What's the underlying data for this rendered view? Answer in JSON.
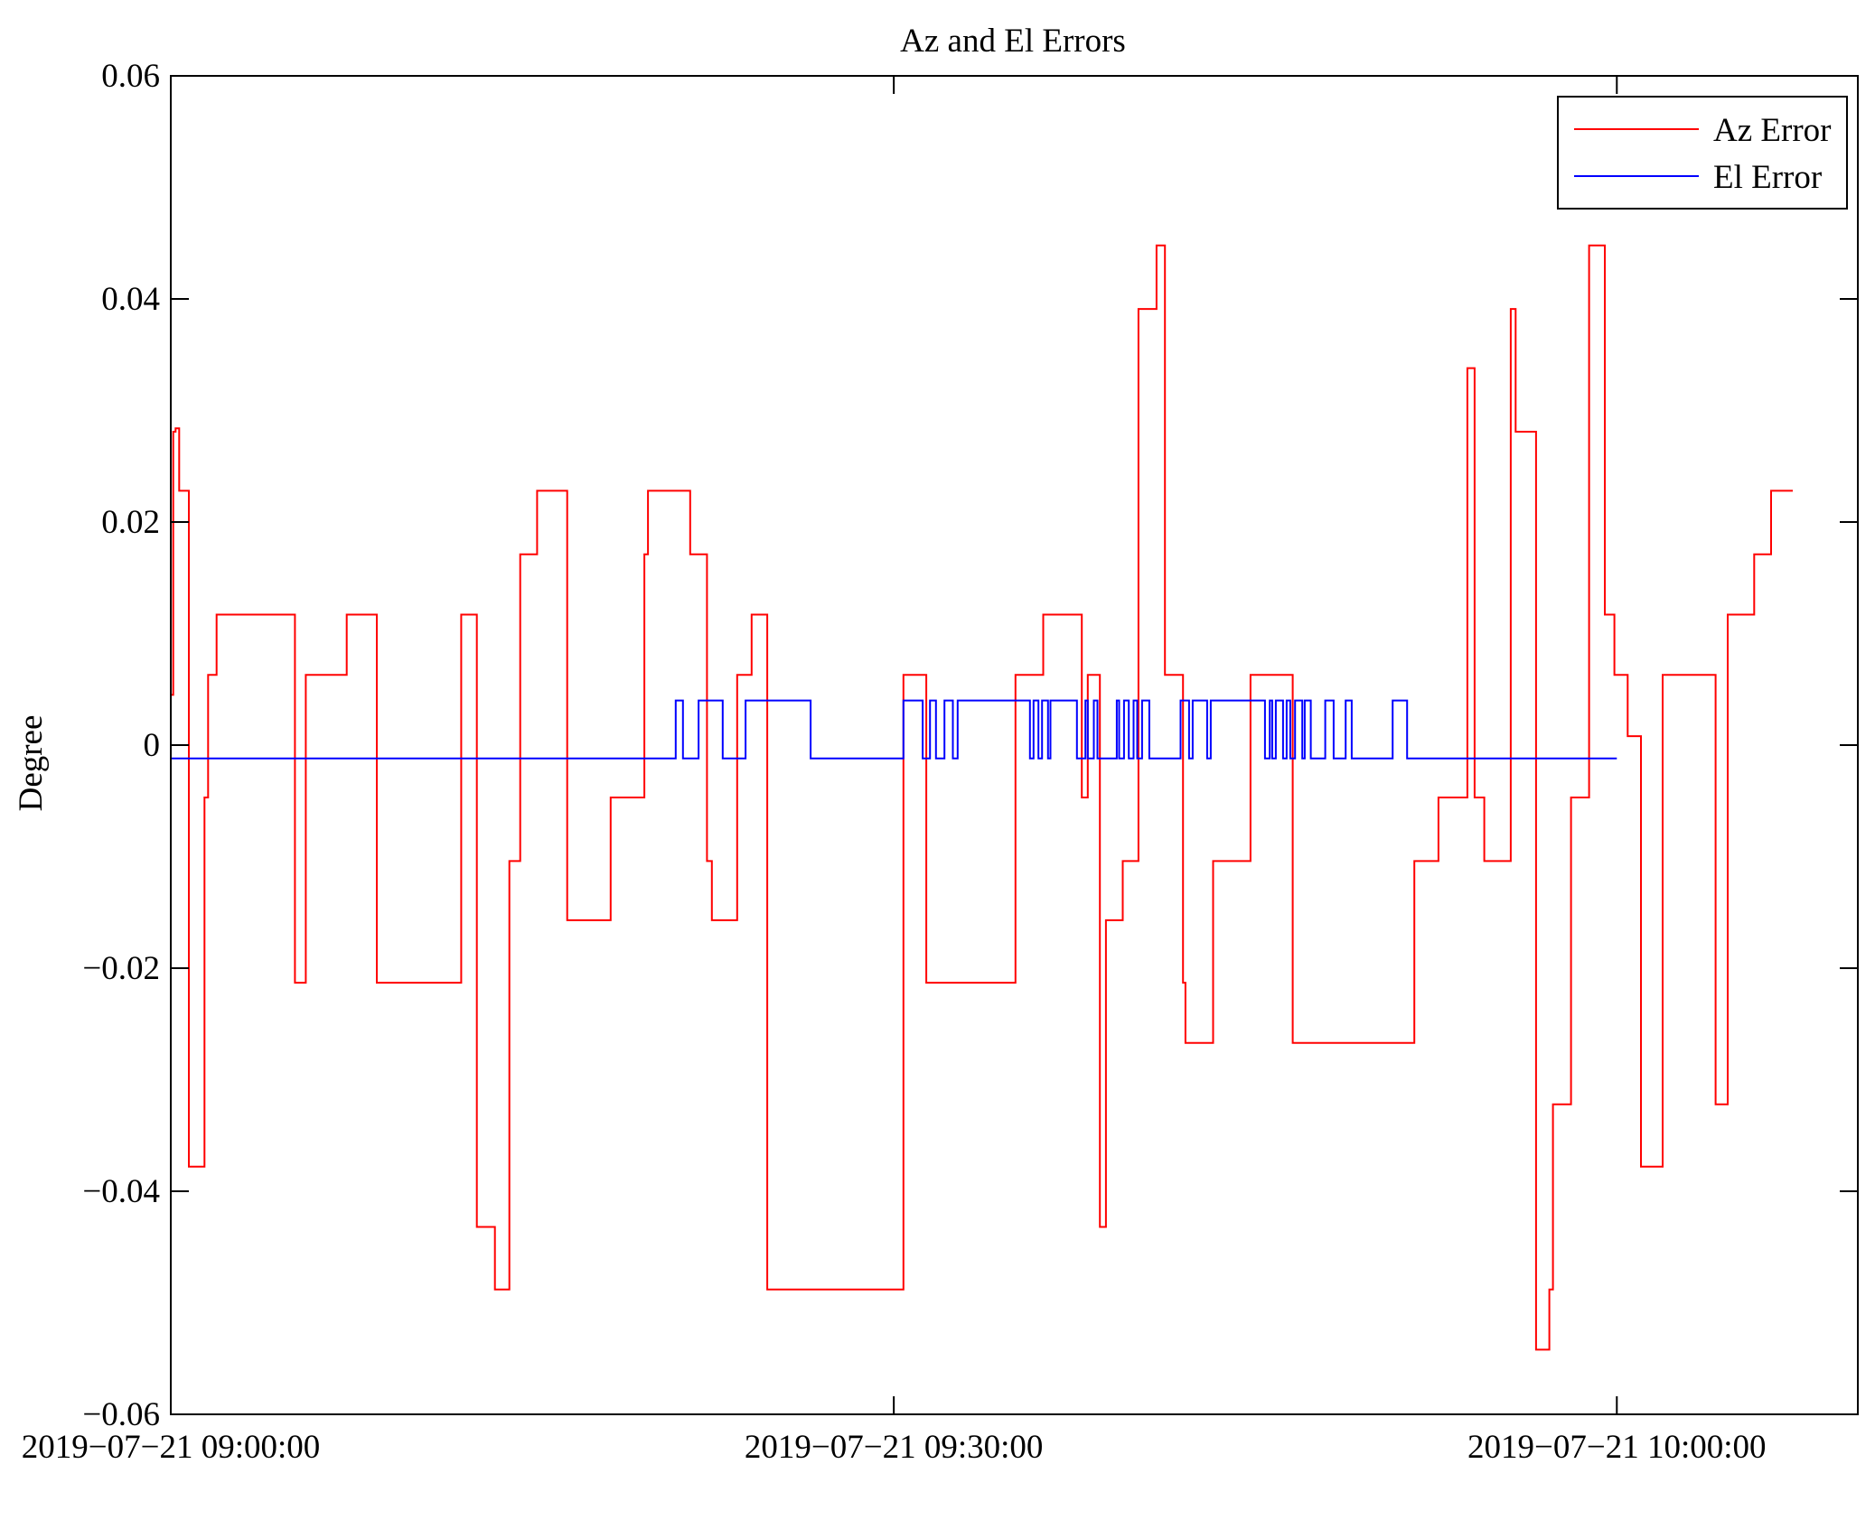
{
  "chart_data": {
    "type": "line",
    "title": "Az and El Errors",
    "xlabel": "",
    "ylabel": "Degree",
    "x_unit": "minutes after 2019-07-21 09:00:00",
    "xlim": [
      0,
      70
    ],
    "ylim": [
      -0.06,
      0.06
    ],
    "x_ticks": [
      {
        "value": 0,
        "label": "2019−07−21 09:00:00"
      },
      {
        "value": 30,
        "label": "2019−07−21 09:30:00"
      },
      {
        "value": 60,
        "label": "2019−07−21 10:00:00"
      }
    ],
    "y_ticks": [
      {
        "value": 0.06,
        "label": "0.06"
      },
      {
        "value": 0.04,
        "label": "0.04"
      },
      {
        "value": 0.02,
        "label": "0.02"
      },
      {
        "value": 0,
        "label": "0"
      },
      {
        "value": -0.02,
        "label": "−0.02"
      },
      {
        "value": -0.04,
        "label": "−0.04"
      },
      {
        "value": -0.06,
        "label": "−0.06"
      }
    ],
    "grid": false,
    "legend_position": "top-right",
    "series": [
      {
        "name": "Az Error",
        "color": "#ff0000",
        "style": "step",
        "x": [
          0,
          0.1,
          0.2,
          0.35,
          0.65,
          0.75,
          1.3,
          1.4,
          1.55,
          1.9,
          3.85,
          5.15,
          5.6,
          7.3,
          8.55,
          12.05,
          12.7,
          13.45,
          14.05,
          14.5,
          15.2,
          16.0,
          16.45,
          18.25,
          19.05,
          19.65,
          19.8,
          20.25,
          21.55,
          22.25,
          22.45,
          22.65,
          23.5,
          24.1,
          24.5,
          24.75,
          25.3,
          30.4,
          31.35,
          35.05,
          36.2,
          36.85,
          37.8,
          38.05,
          38.25,
          38.55,
          38.7,
          38.8,
          39.5,
          39.95,
          40.15,
          40.9,
          41.25,
          41.35,
          42.0,
          42.1,
          42.95,
          43.25,
          44.8,
          46.45,
          46.55,
          47.4,
          51.6,
          52.6,
          53.1,
          53.8,
          53.95,
          54.1,
          54.5,
          55.05,
          55.6,
          55.8,
          56.2,
          56.65,
          57.2,
          57.35,
          58.1,
          58.85,
          59.5,
          59.9,
          60.45,
          60.75,
          61.0,
          61.9,
          62.0,
          64.1,
          64.6,
          65.7,
          66.4,
          67.3
        ],
        "values": [
          0.0045,
          0.0281,
          0.0284,
          0.0228,
          0.0228,
          -0.0378,
          -0.0378,
          -0.0047,
          0.0063,
          0.0117,
          0.0117,
          -0.0213,
          0.0063,
          0.0117,
          -0.0213,
          0.0117,
          -0.0432,
          -0.0488,
          -0.0104,
          0.0171,
          0.0228,
          0.0228,
          -0.0157,
          -0.0047,
          -0.0047,
          0.0171,
          0.0228,
          0.0228,
          0.0171,
          -0.0104,
          -0.0157,
          -0.0157,
          0.0063,
          0.0117,
          0.0117,
          -0.0488,
          -0.0488,
          0.0063,
          -0.0213,
          0.0063,
          0.0117,
          0.0117,
          -0.0047,
          0.0063,
          0.0063,
          -0.0432,
          -0.0432,
          -0.0157,
          -0.0104,
          -0.0104,
          0.0391,
          0.0448,
          0.0063,
          0.0063,
          -0.0213,
          -0.0267,
          -0.0267,
          -0.0104,
          0.0063,
          0.0063,
          -0.0267,
          -0.0267,
          -0.0104,
          -0.0047,
          -0.0047,
          0.0338,
          0.0338,
          -0.0047,
          -0.0104,
          -0.0104,
          0.0391,
          0.0281,
          0.0281,
          -0.0542,
          -0.0488,
          -0.0322,
          -0.0047,
          0.0448,
          0.0117,
          0.0063,
          0.0008,
          0.0008,
          -0.0378,
          0.0063,
          0.0063,
          -0.0322,
          0.0117,
          0.0171,
          0.0228,
          0.0228
        ]
      },
      {
        "name": "El Error",
        "color": "#0000ff",
        "style": "step",
        "x": [
          0,
          20.95,
          21.25,
          21.9,
          22.9,
          23.85,
          24.0,
          26.55,
          30.4,
          31.2,
          31.5,
          31.75,
          32.1,
          32.45,
          32.65,
          33.15,
          35.65,
          35.8,
          36.0,
          36.15,
          36.4,
          36.5,
          37.0,
          37.6,
          37.95,
          38.05,
          38.3,
          38.45,
          39.25,
          39.35,
          39.55,
          39.75,
          39.95,
          40.1,
          40.3,
          40.6,
          41.9,
          42.25,
          42.4,
          43.0,
          43.15,
          45.4,
          45.6,
          45.7,
          45.85,
          46.15,
          46.3,
          46.45,
          46.65,
          46.95,
          47.05,
          47.3,
          47.9,
          48.25,
          48.75,
          49.0,
          50.7,
          51.3,
          60.0
        ],
        "values": [
          -0.0012,
          0.004,
          -0.0012,
          0.004,
          -0.0012,
          0.004,
          0.004,
          -0.0012,
          0.004,
          -0.0012,
          0.004,
          -0.0012,
          0.004,
          -0.0012,
          0.004,
          0.004,
          -0.0012,
          0.004,
          -0.0012,
          0.004,
          -0.0012,
          0.004,
          0.004,
          -0.0012,
          0.004,
          -0.0012,
          0.004,
          -0.0012,
          0.004,
          -0.0012,
          0.004,
          -0.0012,
          0.004,
          -0.0012,
          0.004,
          -0.0012,
          0.004,
          -0.0012,
          0.004,
          -0.0012,
          0.004,
          -0.0012,
          0.004,
          -0.0012,
          0.004,
          -0.0012,
          0.004,
          -0.0012,
          0.004,
          -0.0012,
          0.004,
          -0.0012,
          0.004,
          -0.0012,
          0.004,
          -0.0012,
          0.004,
          -0.0012,
          -0.0012
        ]
      }
    ]
  }
}
